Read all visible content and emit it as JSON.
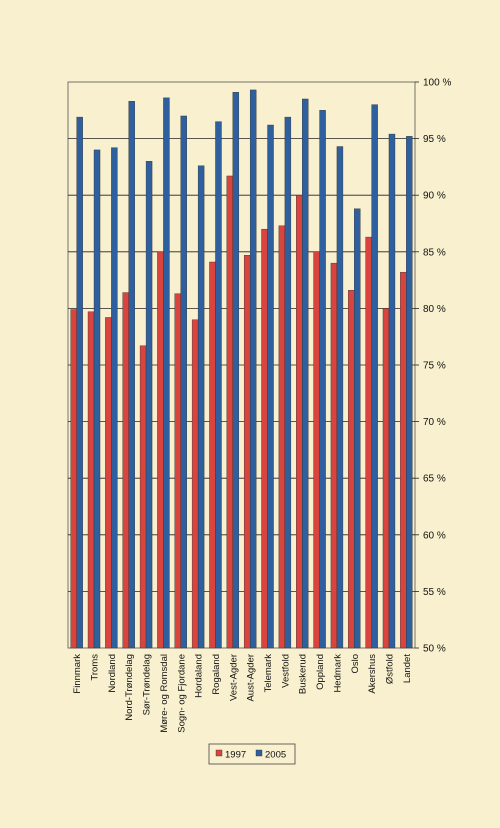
{
  "chart_data": {
    "type": "bar",
    "orientation": "vertical",
    "title": "",
    "xlabel": "",
    "ylabel": "",
    "ylim": [
      50,
      100
    ],
    "y_ticks": [
      "50 %",
      "55 %",
      "60 %",
      "65 %",
      "70 %",
      "75 %",
      "80 %",
      "85 %",
      "90 %",
      "95 %",
      "100 %"
    ],
    "y_axis_side": "right",
    "grid": true,
    "legend_position": "bottom",
    "categories": [
      "Finnmark",
      "Troms",
      "Nordland",
      "Nord-Trøndelag",
      "Sør-Trøndelag",
      "Møre- og Romsdal",
      "Sogn- og Fjordane",
      "Hordaland",
      "Rogaland",
      "Vest-Agder",
      "Aust-Agder",
      "Telemark",
      "Vestfold",
      "Buskerud",
      "Oppland",
      "Hedmark",
      "Oslo",
      "Akershus",
      "Østfold",
      "Landet"
    ],
    "series": [
      {
        "name": "1997",
        "color": "#d9443f",
        "values": [
          79.9,
          79.7,
          79.2,
          81.4,
          76.7,
          85.0,
          81.3,
          79.0,
          84.1,
          91.7,
          84.7,
          87.0,
          87.3,
          90.0,
          85.0,
          84.0,
          81.6,
          86.3,
          80.0,
          83.2
        ]
      },
      {
        "name": "2005",
        "color": "#2e5f9e",
        "values": [
          96.9,
          94.0,
          94.2,
          98.3,
          93.0,
          98.6,
          97.0,
          92.6,
          96.5,
          99.1,
          99.3,
          96.2,
          96.9,
          98.5,
          97.5,
          94.3,
          88.8,
          98.0,
          95.4,
          95.2
        ]
      }
    ]
  }
}
